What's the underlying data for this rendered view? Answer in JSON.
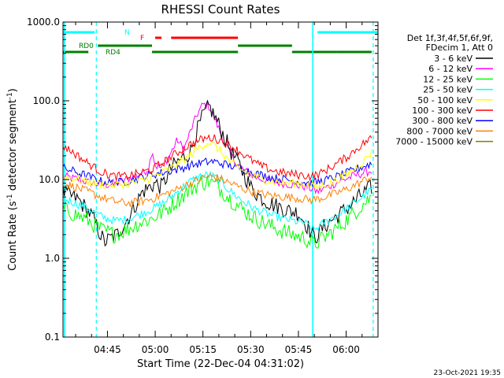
{
  "chart_data": {
    "type": "line",
    "title": "RHESSI Count Rates",
    "xlabel": "Start Time (22-Dec-04 04:31:02)",
    "ylabel": "Count Rate (s⁻¹ detector segment⁻¹)",
    "ylabel_parts": [
      "Count Rate (s",
      "-1",
      " detector segment",
      "-1",
      ")"
    ],
    "y_scale": "log",
    "ylim": [
      0.1,
      1000.0
    ],
    "xlim": [
      "04:31:02",
      "06:10:00"
    ],
    "y_ticks": [
      "0.1",
      "1.0",
      "10.0",
      "100.0",
      "1000.0"
    ],
    "x_ticks": [
      "04:45",
      "05:00",
      "05:15",
      "05:30",
      "05:45",
      "06:00"
    ],
    "timestamp": "23-Oct-2021 19:35",
    "legend_header": [
      "Det 1f,3f,4f,5f,6f,9f,",
      "FDecim 1, Att 0"
    ],
    "legend_position": "right",
    "series": [
      {
        "name": "3 - 6 keV",
        "color": "#000000",
        "points": [
          [
            "04:31",
            7.0
          ],
          [
            "04:36",
            5.5
          ],
          [
            "04:40",
            3.5
          ],
          [
            "04:44",
            1.6
          ],
          [
            "04:48",
            2.0
          ],
          [
            "04:52",
            3.5
          ],
          [
            "04:56",
            7.0
          ],
          [
            "05:00",
            9.0
          ],
          [
            "05:02",
            8.0
          ],
          [
            "05:05",
            14.0
          ],
          [
            "05:08",
            18.0
          ],
          [
            "05:11",
            22.0
          ],
          [
            "05:13",
            40.0
          ],
          [
            "05:15",
            65.0
          ],
          [
            "05:17",
            85.0
          ],
          [
            "05:19",
            60.0
          ],
          [
            "05:21",
            40.0
          ],
          [
            "05:24",
            22.0
          ],
          [
            "05:27",
            14.0
          ],
          [
            "05:30",
            8.0
          ],
          [
            "05:33",
            6.0
          ],
          [
            "05:36",
            5.0
          ],
          [
            "05:39",
            4.5
          ],
          [
            "05:42",
            4.0
          ],
          [
            "05:45",
            3.8
          ],
          [
            "05:48",
            2.5
          ],
          [
            "05:50",
            1.8
          ],
          [
            "05:53",
            2.5
          ],
          [
            "05:56",
            3.2
          ],
          [
            "06:00",
            4.2
          ],
          [
            "06:03",
            5.5
          ],
          [
            "06:06",
            7.0
          ],
          [
            "06:08",
            8.0
          ]
        ]
      },
      {
        "name": "6 - 12 keV",
        "color": "#ff00ff",
        "points": [
          [
            "04:31",
            11.0
          ],
          [
            "04:36",
            10.0
          ],
          [
            "04:40",
            9.0
          ],
          [
            "04:44",
            8.5
          ],
          [
            "04:48",
            9.0
          ],
          [
            "04:52",
            10.5
          ],
          [
            "04:56",
            12.0
          ],
          [
            "04:58",
            14.0
          ],
          [
            "04:59",
            25.0
          ],
          [
            "05:00",
            15.0
          ],
          [
            "05:02",
            14.0
          ],
          [
            "05:05",
            22.0
          ],
          [
            "05:07",
            32.0
          ],
          [
            "05:09",
            24.0
          ],
          [
            "05:11",
            40.0
          ],
          [
            "05:13",
            65.0
          ],
          [
            "05:15",
            90.0
          ],
          [
            "05:17",
            85.0
          ],
          [
            "05:19",
            55.0
          ],
          [
            "05:22",
            28.0
          ],
          [
            "05:25",
            17.0
          ],
          [
            "05:28",
            13.0
          ],
          [
            "05:32",
            10.5
          ],
          [
            "05:36",
            9.5
          ],
          [
            "05:40",
            9.0
          ],
          [
            "05:44",
            8.5
          ],
          [
            "05:48",
            8.0
          ],
          [
            "05:51",
            7.0
          ],
          [
            "05:54",
            8.0
          ],
          [
            "05:58",
            9.5
          ],
          [
            "06:02",
            11.0
          ],
          [
            "06:05",
            12.0
          ],
          [
            "06:08",
            13.0
          ]
        ]
      },
      {
        "name": "12 - 25 keV",
        "color": "#00ff00",
        "points": [
          [
            "04:31",
            4.2
          ],
          [
            "04:35",
            3.6
          ],
          [
            "04:39",
            3.0
          ],
          [
            "04:43",
            2.3
          ],
          [
            "04:47",
            2.0
          ],
          [
            "04:51",
            2.3
          ],
          [
            "04:55",
            2.8
          ],
          [
            "04:59",
            3.2
          ],
          [
            "05:03",
            4.0
          ],
          [
            "05:07",
            5.5
          ],
          [
            "05:11",
            7.5
          ],
          [
            "05:14",
            9.0
          ],
          [
            "05:17",
            9.5
          ],
          [
            "05:20",
            8.0
          ],
          [
            "05:23",
            6.0
          ],
          [
            "05:27",
            4.3
          ],
          [
            "05:31",
            3.3
          ],
          [
            "05:35",
            2.7
          ],
          [
            "05:39",
            2.3
          ],
          [
            "05:43",
            2.0
          ],
          [
            "05:47",
            1.8
          ],
          [
            "05:50",
            1.5
          ],
          [
            "05:53",
            1.8
          ],
          [
            "05:57",
            2.4
          ],
          [
            "06:01",
            3.3
          ],
          [
            "06:05",
            4.8
          ],
          [
            "06:08",
            6.0
          ]
        ]
      },
      {
        "name": "25 - 50 keV",
        "color": "#00ffff",
        "points": [
          [
            "04:31",
            5.8
          ],
          [
            "04:35",
            5.0
          ],
          [
            "04:39",
            4.3
          ],
          [
            "04:43",
            3.4
          ],
          [
            "04:47",
            3.0
          ],
          [
            "04:51",
            3.1
          ],
          [
            "04:55",
            3.6
          ],
          [
            "04:59",
            4.2
          ],
          [
            "05:03",
            5.2
          ],
          [
            "05:07",
            7.0
          ],
          [
            "05:11",
            9.5
          ],
          [
            "05:14",
            11.0
          ],
          [
            "05:17",
            11.5
          ],
          [
            "05:20",
            10.0
          ],
          [
            "05:23",
            7.5
          ],
          [
            "05:27",
            5.5
          ],
          [
            "05:31",
            4.3
          ],
          [
            "05:35",
            3.7
          ],
          [
            "05:39",
            3.3
          ],
          [
            "05:43",
            3.0
          ],
          [
            "05:47",
            2.8
          ],
          [
            "05:50",
            2.3
          ],
          [
            "05:53",
            2.8
          ],
          [
            "05:57",
            3.5
          ],
          [
            "06:01",
            4.5
          ],
          [
            "06:05",
            6.0
          ],
          [
            "06:08",
            7.5
          ]
        ]
      },
      {
        "name": "50 - 100 keV",
        "color": "#ffff00",
        "points": [
          [
            "04:31",
            11.0
          ],
          [
            "04:36",
            10.0
          ],
          [
            "04:41",
            9.0
          ],
          [
            "04:45",
            8.5
          ],
          [
            "04:50",
            8.7
          ],
          [
            "04:55",
            9.5
          ],
          [
            "05:00",
            11.0
          ],
          [
            "05:05",
            14.0
          ],
          [
            "05:10",
            19.0
          ],
          [
            "05:14",
            26.0
          ],
          [
            "05:17",
            30.0
          ],
          [
            "05:20",
            24.0
          ],
          [
            "05:24",
            16.0
          ],
          [
            "05:29",
            12.0
          ],
          [
            "05:34",
            10.0
          ],
          [
            "05:39",
            9.2
          ],
          [
            "05:44",
            9.0
          ],
          [
            "05:48",
            8.5
          ],
          [
            "05:51",
            8.0
          ],
          [
            "05:55",
            9.0
          ],
          [
            "06:00",
            11.5
          ],
          [
            "06:04",
            15.0
          ],
          [
            "06:08",
            22.0
          ]
        ]
      },
      {
        "name": "100 - 300 keV",
        "color": "#ff0000",
        "points": [
          [
            "04:31",
            27.0
          ],
          [
            "04:35",
            21.0
          ],
          [
            "04:39",
            16.0
          ],
          [
            "04:43",
            12.5
          ],
          [
            "04:47",
            11.0
          ],
          [
            "04:51",
            11.0
          ],
          [
            "04:55",
            12.0
          ],
          [
            "04:59",
            13.5
          ],
          [
            "05:03",
            17.0
          ],
          [
            "05:07",
            22.0
          ],
          [
            "05:11",
            28.0
          ],
          [
            "05:15",
            33.0
          ],
          [
            "05:18",
            34.0
          ],
          [
            "05:21",
            31.0
          ],
          [
            "05:25",
            25.0
          ],
          [
            "05:29",
            19.0
          ],
          [
            "05:33",
            15.0
          ],
          [
            "05:37",
            13.0
          ],
          [
            "05:41",
            12.0
          ],
          [
            "05:45",
            11.5
          ],
          [
            "05:49",
            11.0
          ],
          [
            "05:52",
            12.0
          ],
          [
            "05:56",
            15.0
          ],
          [
            "06:00",
            19.0
          ],
          [
            "06:04",
            26.0
          ],
          [
            "06:08",
            34.0
          ]
        ]
      },
      {
        "name": "300 - 800 keV",
        "color": "#0000ff",
        "points": [
          [
            "04:31",
            14.0
          ],
          [
            "04:35",
            12.5
          ],
          [
            "04:39",
            11.0
          ],
          [
            "04:43",
            9.5
          ],
          [
            "04:47",
            9.0
          ],
          [
            "04:51",
            9.5
          ],
          [
            "04:55",
            10.5
          ],
          [
            "04:59",
            11.5
          ],
          [
            "05:03",
            12.5
          ],
          [
            "05:07",
            13.5
          ],
          [
            "05:11",
            15.0
          ],
          [
            "05:15",
            16.5
          ],
          [
            "05:18",
            17.0
          ],
          [
            "05:21",
            16.0
          ],
          [
            "05:25",
            14.5
          ],
          [
            "05:29",
            13.0
          ],
          [
            "05:33",
            11.5
          ],
          [
            "05:37",
            10.5
          ],
          [
            "05:41",
            10.0
          ],
          [
            "05:45",
            9.5
          ],
          [
            "05:49",
            9.0
          ],
          [
            "05:52",
            9.5
          ],
          [
            "05:56",
            10.5
          ],
          [
            "06:00",
            12.0
          ],
          [
            "06:04",
            14.0
          ],
          [
            "06:08",
            16.0
          ]
        ]
      },
      {
        "name": "800 - 7000 keV",
        "color": "#ff8000",
        "points": [
          [
            "04:31",
            9.0
          ],
          [
            "04:35",
            8.0
          ],
          [
            "04:39",
            7.0
          ],
          [
            "04:43",
            6.0
          ],
          [
            "04:47",
            5.3
          ],
          [
            "04:51",
            5.0
          ],
          [
            "04:55",
            5.2
          ],
          [
            "04:59",
            5.7
          ],
          [
            "05:03",
            6.5
          ],
          [
            "05:07",
            7.5
          ],
          [
            "05:11",
            9.0
          ],
          [
            "05:15",
            10.5
          ],
          [
            "05:18",
            11.0
          ],
          [
            "05:21",
            10.0
          ],
          [
            "05:25",
            8.5
          ],
          [
            "05:29",
            7.3
          ],
          [
            "05:33",
            6.6
          ],
          [
            "05:37",
            6.2
          ],
          [
            "05:41",
            6.0
          ],
          [
            "05:45",
            5.8
          ],
          [
            "05:49",
            5.5
          ],
          [
            "05:52",
            5.8
          ],
          [
            "05:56",
            6.5
          ],
          [
            "06:00",
            7.5
          ],
          [
            "06:04",
            9.0
          ],
          [
            "06:08",
            11.0
          ]
        ]
      },
      {
        "name": "7000 - 15000 keV",
        "color": "#808000",
        "points": []
      }
    ],
    "state_bars": [
      {
        "label": "N",
        "color": "#00ffff",
        "segments": [
          [
            "04:31",
            "04:41"
          ],
          [
            "05:51",
            "06:10"
          ]
        ]
      },
      {
        "label": "F",
        "color": "#ff0000",
        "segments": [
          [
            "05:00",
            "05:02"
          ],
          [
            "05:05",
            "05:26"
          ]
        ]
      },
      {
        "label": "RD0",
        "color": "#008000",
        "segments": [
          [
            "04:42",
            "04:59"
          ],
          [
            "05:26",
            "05:43"
          ]
        ]
      },
      {
        "label": "RD4",
        "color": "#008000",
        "segments": [
          [
            "04:31",
            "04:39"
          ],
          [
            "04:59",
            "05:26"
          ],
          [
            "05:43",
            "05:57"
          ],
          [
            "05:57",
            "06:08"
          ]
        ]
      }
    ],
    "vlines": [
      {
        "time": "04:31:30",
        "color": "#00ffff",
        "style": "solid"
      },
      {
        "time": "04:41:30",
        "color": "#00ffff",
        "style": "dashed"
      },
      {
        "time": "05:49:30",
        "color": "#00ffff",
        "style": "solid"
      },
      {
        "time": "06:08:30",
        "color": "#00ffff",
        "style": "dashed"
      }
    ]
  }
}
